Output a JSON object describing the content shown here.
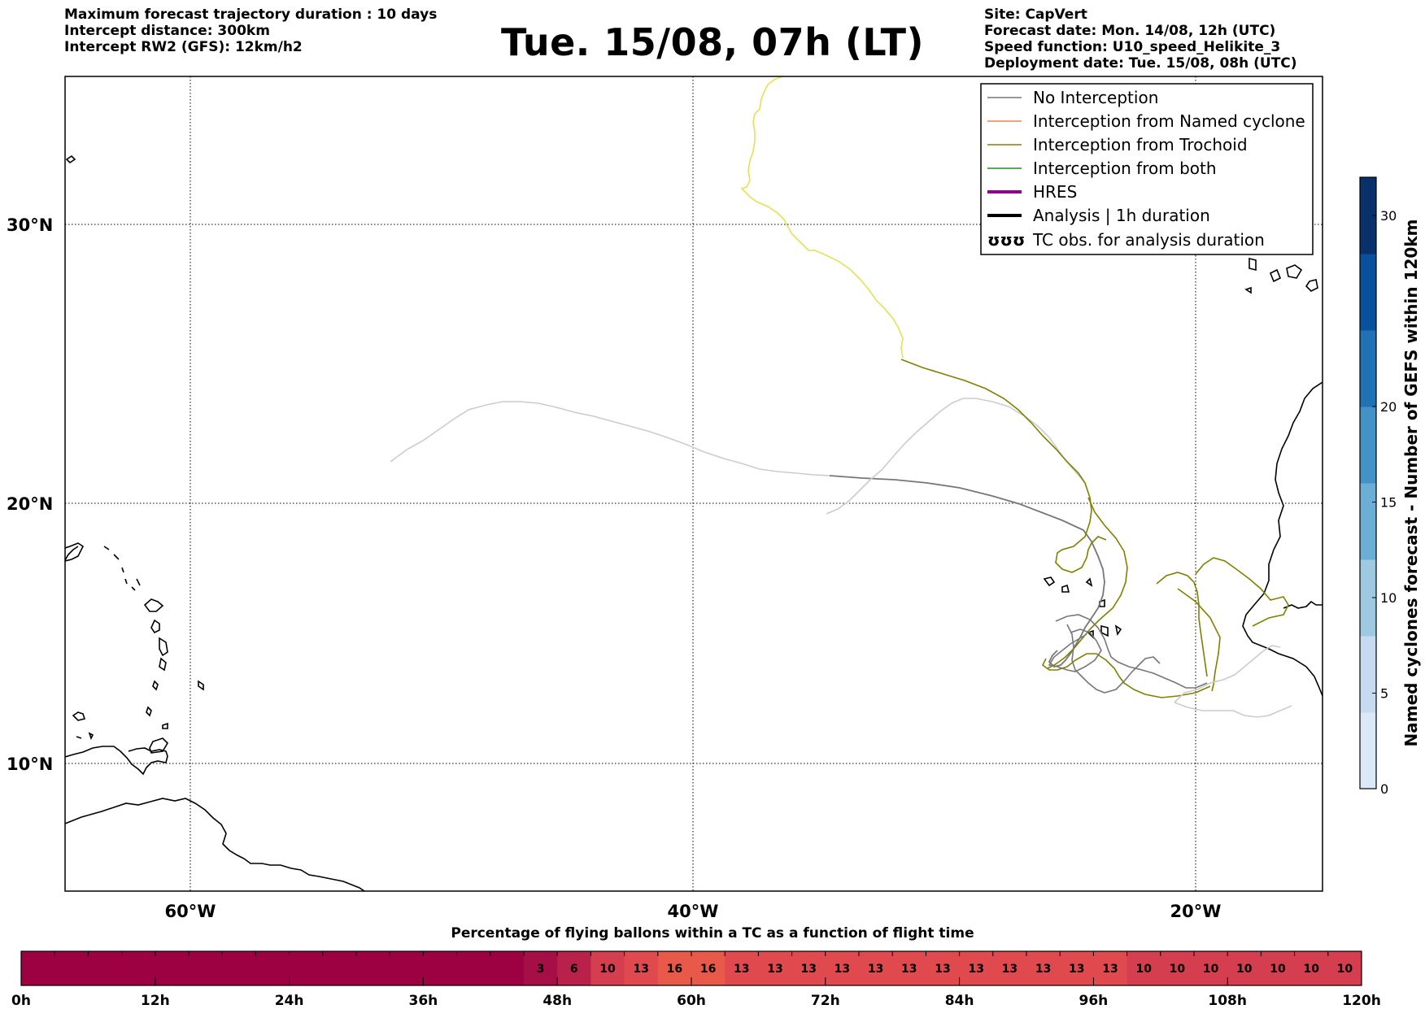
{
  "header_left": {
    "line1": "Maximum forecast trajectory duration : 10 days",
    "line2": "Intercept distance: 300km",
    "line3": "Intercept RW2 (GFS):  12km/h2"
  },
  "title": "Tue. 15/08, 07h (LT)",
  "header_right": {
    "site": "Site: CapVert",
    "forecast_date": "Forecast date: Mon. 14/08, 12h (UTC)",
    "speed_function": "Speed function: U10_speed_Helikite_3",
    "deployment_date": "Deployment date: Tue. 15/08, 08h (UTC)"
  },
  "map": {
    "lat_labels": [
      "30°N",
      "20°N",
      "10°N"
    ],
    "lon_labels": [
      "60°W",
      "40°W",
      "20°W"
    ],
    "lon_range": [
      -65,
      -15
    ],
    "lat_range": [
      5.4,
      34.6
    ]
  },
  "legend": {
    "items": [
      {
        "label": "No Interception",
        "color": "#777777"
      },
      {
        "label": "Interception from Named cyclone",
        "color": "#ff7f50"
      },
      {
        "label": "Interception from Trochoid",
        "color": "#808000"
      },
      {
        "label": "Interception from both",
        "color": "#228b22"
      },
      {
        "label": "HRES",
        "color": "#8b008b"
      },
      {
        "label": "Analysis | 1h duration",
        "color": "#000000"
      },
      {
        "label": "TC obs. for analysis duration",
        "color": "#000000"
      }
    ],
    "tc_symbol": "ʊʊʊ"
  },
  "colorbar": {
    "title": "Named cyclones forecast - Number of GEFS within 120km",
    "ticks": [
      "0",
      "5",
      "10",
      "15",
      "20",
      "30"
    ],
    "max": 32,
    "colors": [
      "#dbe9f6",
      "#c6dbef",
      "#9ecae1",
      "#6baed6",
      "#4292c6",
      "#2171b5",
      "#08519c",
      "#08306b"
    ]
  },
  "strip": {
    "title": "Percentage of flying ballons within a TC as a function of flight time",
    "tick_labels": [
      "0h",
      "12h",
      "24h",
      "36h",
      "48h",
      "60h",
      "72h",
      "84h",
      "96h",
      "108h",
      "120h"
    ],
    "values": [
      "",
      "",
      "",
      "",
      "",
      "",
      "",
      "",
      "",
      "",
      "",
      "",
      "",
      "",
      "",
      "3",
      "6",
      "10",
      "13",
      "16",
      "16",
      "13",
      "13",
      "13",
      "13",
      "13",
      "13",
      "13",
      "13",
      "13",
      "13",
      "13",
      "13",
      "10",
      "10",
      "10",
      "10",
      "10",
      "10",
      "10"
    ],
    "colors": {
      "0": "#9e0142",
      "3": "#a50f45",
      "6": "#b9204a",
      "10": "#d53e4f",
      "13": "#e04a4e",
      "16": "#e8594a"
    }
  }
}
